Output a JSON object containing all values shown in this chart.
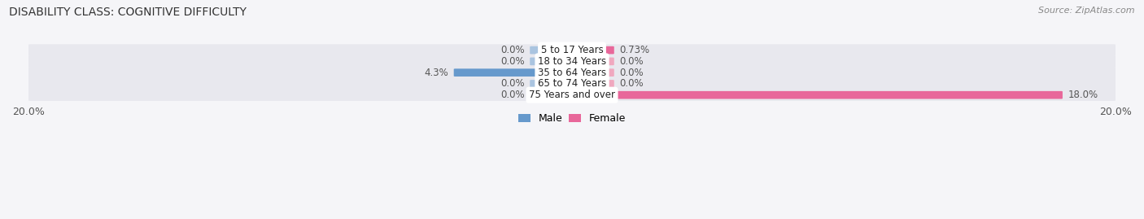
{
  "title": "DISABILITY CLASS: COGNITIVE DIFFICULTY",
  "source": "Source: ZipAtlas.com",
  "categories": [
    "5 to 17 Years",
    "18 to 34 Years",
    "35 to 64 Years",
    "65 to 74 Years",
    "75 Years and over"
  ],
  "male_values": [
    0.0,
    0.0,
    4.3,
    0.0,
    0.0
  ],
  "female_values": [
    0.73,
    0.0,
    0.0,
    0.0,
    18.0
  ],
  "male_label_values": [
    "0.0%",
    "0.0%",
    "4.3%",
    "0.0%",
    "0.0%"
  ],
  "female_label_values": [
    "0.73%",
    "0.0%",
    "0.0%",
    "0.0%",
    "18.0%"
  ],
  "xlim": 20.0,
  "min_bar": 1.5,
  "male_color_full": "#6699cc",
  "male_color_min": "#aac4e0",
  "female_color_full": "#e8679a",
  "female_color_min": "#f0a8bf",
  "row_bg_light": "#ededf2",
  "row_bg_dark": "#e2e2ea",
  "label_color": "#555555",
  "title_fontsize": 10,
  "tick_fontsize": 9,
  "legend_fontsize": 9,
  "source_fontsize": 8,
  "bar_fontsize": 8.5,
  "cat_fontsize": 8.5
}
